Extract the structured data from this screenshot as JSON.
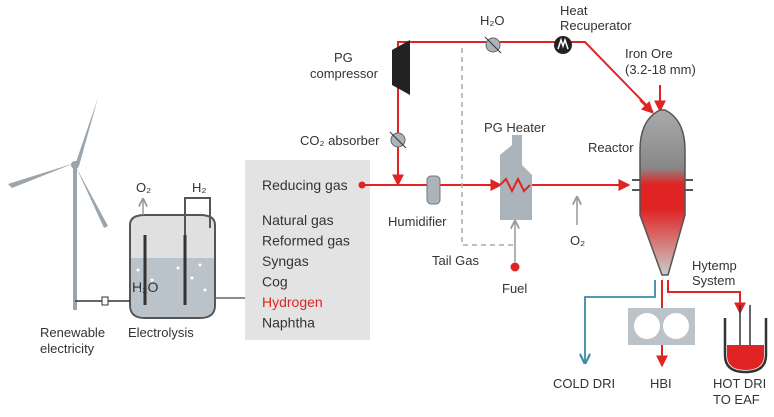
{
  "labels": {
    "renewable": [
      "Renewable",
      "electricity"
    ],
    "electrolysis": "Electrolysis",
    "o2_electrolysis": "O₂",
    "h2": "H₂",
    "h2o_tank": "H₂O",
    "pg_compressor": [
      "PG",
      "compressor"
    ],
    "co2_absorber": "CO₂ absorber",
    "h2o_top": "H₂O",
    "heat_recuperator": [
      "Heat",
      "Recuperator"
    ],
    "iron_ore": [
      "Iron Ore",
      "(3.2-18 mm)"
    ],
    "reactor": "Reactor",
    "pg_heater": "PG Heater",
    "humidifier": "Humidifier",
    "tail_gas": "Tail Gas",
    "fuel": "Fuel",
    "o2_heater": "O₂",
    "hytemp": [
      "Hytemp",
      "System"
    ],
    "cold_dri": "COLD DRI",
    "hbi": "HBI",
    "hot_dri": [
      "HOT DRI",
      "TO EAF"
    ]
  },
  "gas_box": {
    "title": "Reducing gas",
    "items": [
      "Natural gas",
      "Reformed gas",
      "Syngas",
      "Cog",
      "Hydrogen",
      "Naphtha"
    ],
    "highlight_index": 4
  }
}
